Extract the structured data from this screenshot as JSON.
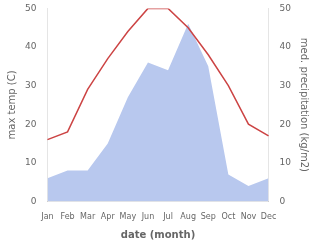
{
  "chart_data": {
    "type": "line",
    "xlabel": "date (month)",
    "ylabel": "max temp (C)",
    "y2label": "med. precipitation (kg/m2)",
    "categories": [
      "Jan",
      "Feb",
      "Mar",
      "Apr",
      "May",
      "Jun",
      "Jul",
      "Aug",
      "Sep",
      "Oct",
      "Nov",
      "Dec"
    ],
    "series": [
      {
        "type": "area",
        "color": "#b8c8ee",
        "axis": "y2",
        "values": [
          6,
          8,
          8,
          15,
          27,
          36,
          34,
          46,
          35,
          7,
          4,
          6
        ]
      },
      {
        "type": "line",
        "color": "#cc4444",
        "values": [
          16,
          18,
          29,
          37,
          44,
          50,
          50,
          45,
          38,
          30,
          20,
          17
        ]
      }
    ],
    "ylim": [
      0,
      50
    ],
    "yticks": [
      0,
      10,
      20,
      30,
      40,
      50
    ],
    "y2lim": [
      0,
      50
    ],
    "y2ticks": [
      0,
      10,
      20,
      30,
      40,
      50
    ],
    "grid": false
  }
}
